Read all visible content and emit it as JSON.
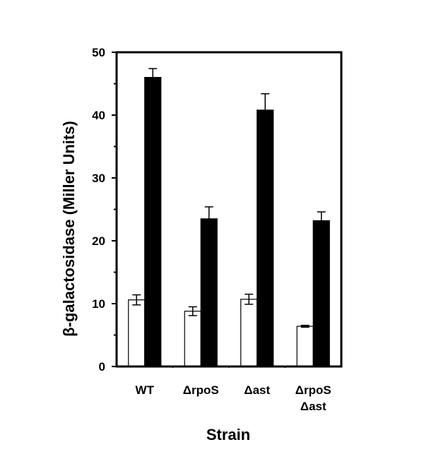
{
  "chart_data": {
    "type": "bar",
    "xlabel": "Strain",
    "ylabel": "β-galactosidase (Miller Units)",
    "ylim": [
      0,
      50
    ],
    "yticks": [
      0,
      10,
      20,
      30,
      40,
      50
    ],
    "grid": false,
    "legend": "none",
    "categories": [
      {
        "lines": [
          "WT"
        ]
      },
      {
        "lines": [
          "ΔrpoS"
        ]
      },
      {
        "lines": [
          "Δast"
        ]
      },
      {
        "lines": [
          "ΔrpoS",
          "Δast"
        ]
      }
    ],
    "series": [
      {
        "fill": "#ffffff",
        "values": [
          10.6,
          8.8,
          10.7,
          6.4
        ],
        "errors": [
          0.8,
          0.7,
          0.8,
          0.15
        ]
      },
      {
        "fill": "#000000",
        "values": [
          46.0,
          23.5,
          40.8,
          23.2
        ],
        "errors": [
          1.4,
          1.9,
          2.6,
          1.4
        ]
      }
    ],
    "colors": {
      "axis": "#000000",
      "open_bar": "#ffffff",
      "filled_bar": "#000000"
    }
  }
}
